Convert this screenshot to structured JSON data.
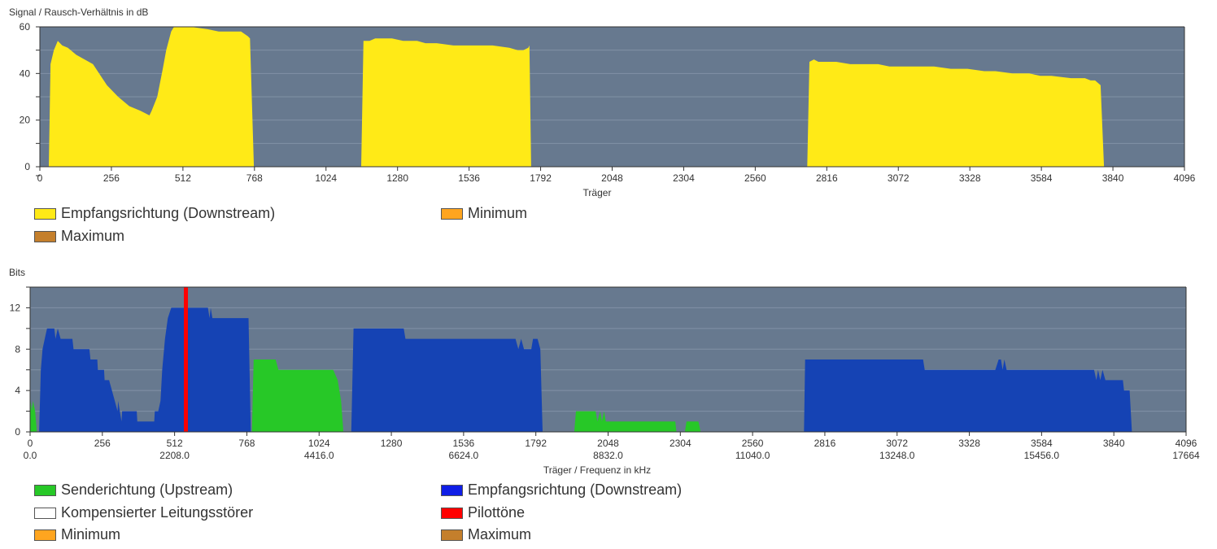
{
  "chart_data": [
    {
      "type": "area",
      "title": "Signal / Rausch-Verhältnis in dB",
      "xlabel": "Träger",
      "xlim": [
        0,
        4096
      ],
      "ylim": [
        0,
        60
      ],
      "yticks": [
        0,
        20,
        40,
        60
      ],
      "xticks": [
        0,
        256,
        512,
        768,
        1024,
        1280,
        1536,
        1792,
        2048,
        2304,
        2560,
        2816,
        3072,
        3328,
        3584,
        3840,
        4096
      ],
      "grid": true,
      "background_color": "#67798f",
      "legend_position": "bottom",
      "series": [
        {
          "name": "Empfangsrichtung (Downstream)",
          "color": "#ffea17",
          "segments": [
            [
              [
                32,
                0
              ],
              [
                38,
                44
              ],
              [
                50,
                50
              ],
              [
                64,
                54
              ],
              [
                80,
                52
              ],
              [
                100,
                51
              ],
              [
                130,
                48
              ],
              [
                160,
                46
              ],
              [
                190,
                44
              ],
              [
                240,
                35
              ],
              [
                280,
                30
              ],
              [
                320,
                26
              ],
              [
                360,
                24
              ],
              [
                392,
                22
              ],
              [
                400,
                24
              ],
              [
                420,
                30
              ],
              [
                440,
                42
              ],
              [
                452,
                50
              ],
              [
                470,
                58
              ],
              [
                480,
                60
              ],
              [
                540,
                60
              ],
              [
                600,
                59
              ],
              [
                640,
                58
              ],
              [
                720,
                58
              ],
              [
                744,
                56
              ],
              [
                752,
                55
              ],
              [
                766,
                0
              ]
            ],
            [
              [
                1150,
                0
              ],
              [
                1158,
                54
              ],
              [
                1180,
                54
              ],
              [
                1200,
                55
              ],
              [
                1260,
                55
              ],
              [
                1300,
                54
              ],
              [
                1350,
                54
              ],
              [
                1380,
                53
              ],
              [
                1420,
                53
              ],
              [
                1480,
                52
              ],
              [
                1560,
                52
              ],
              [
                1620,
                52
              ],
              [
                1680,
                51
              ],
              [
                1710,
                50
              ],
              [
                1730,
                50
              ],
              [
                1748,
                51
              ],
              [
                1752,
                52
              ],
              [
                1758,
                0
              ]
            ],
            [
              [
                2746,
                0
              ],
              [
                2754,
                45
              ],
              [
                2770,
                46
              ],
              [
                2786,
                45
              ],
              [
                2850,
                45
              ],
              [
                2900,
                44
              ],
              [
                2960,
                44
              ],
              [
                3000,
                44
              ],
              [
                3040,
                43
              ],
              [
                3100,
                43
              ],
              [
                3200,
                43
              ],
              [
                3260,
                42
              ],
              [
                3320,
                42
              ],
              [
                3380,
                41
              ],
              [
                3420,
                41
              ],
              [
                3480,
                40
              ],
              [
                3540,
                40
              ],
              [
                3580,
                39
              ],
              [
                3620,
                39
              ],
              [
                3690,
                38
              ],
              [
                3740,
                38
              ],
              [
                3760,
                37
              ],
              [
                3776,
                37
              ],
              [
                3796,
                35
              ],
              [
                3808,
                0
              ]
            ]
          ]
        },
        {
          "name": "Minimum",
          "color": "#ffa51f",
          "segments": []
        },
        {
          "name": "Maximum",
          "color": "#c47f2c",
          "segments": []
        }
      ]
    },
    {
      "type": "area",
      "title": "Bits",
      "xlabel": "Träger / Frequenz in kHz",
      "xlim": [
        0,
        4096
      ],
      "ylim": [
        0,
        14
      ],
      "yticks": [
        0,
        4,
        8,
        12
      ],
      "xticks": [
        0,
        256,
        512,
        768,
        1024,
        1280,
        1536,
        1792,
        2048,
        2304,
        2560,
        2816,
        3072,
        3328,
        3584,
        3840,
        4096
      ],
      "xticks_secondary": [
        {
          "x": 0,
          "label": "0.0"
        },
        {
          "x": 512,
          "label": "2208.0"
        },
        {
          "x": 1024,
          "label": "4416.0"
        },
        {
          "x": 1536,
          "label": "6624.0"
        },
        {
          "x": 2048,
          "label": "8832.0"
        },
        {
          "x": 2560,
          "label": "11040.0"
        },
        {
          "x": 3072,
          "label": "13248.0"
        },
        {
          "x": 3584,
          "label": "15456.0"
        },
        {
          "x": 4096,
          "label": "17664"
        }
      ],
      "grid": true,
      "background_color": "#67798f",
      "legend_position": "bottom",
      "series": [
        {
          "name": "Senderichtung (Upstream)",
          "color": "#27c827",
          "segments": [
            [
              [
                0,
                0
              ],
              [
                2,
                3
              ],
              [
                6,
                2
              ],
              [
                10,
                3
              ],
              [
                18,
                2
              ],
              [
                24,
                0
              ]
            ],
            [
              [
                786,
                0
              ],
              [
                792,
                7
              ],
              [
                870,
                7
              ],
              [
                880,
                6
              ],
              [
                1074,
                6
              ],
              [
                1090,
                5
              ],
              [
                1102,
                3
              ],
              [
                1110,
                0
              ]
            ],
            [
              [
                1928,
                0
              ],
              [
                1934,
                2
              ],
              [
                2004,
                2
              ],
              [
                2010,
                1
              ],
              [
                2020,
                2
              ],
              [
                2026,
                1
              ],
              [
                2034,
                2
              ],
              [
                2040,
                1
              ],
              [
                2286,
                1
              ],
              [
                2290,
                0
              ]
            ],
            [
              [
                2320,
                0
              ],
              [
                2326,
                1
              ],
              [
                2368,
                1
              ],
              [
                2376,
                0
              ]
            ]
          ]
        },
        {
          "name": "Empfangsrichtung (Downstream)",
          "color": "#1543b4",
          "segments": [
            [
              [
                32,
                0
              ],
              [
                38,
                6
              ],
              [
                44,
                8
              ],
              [
                52,
                9
              ],
              [
                60,
                10
              ],
              [
                86,
                10
              ],
              [
                90,
                9
              ],
              [
                98,
                10
              ],
              [
                108,
                9
              ],
              [
                150,
                9
              ],
              [
                154,
                8
              ],
              [
                210,
                8
              ],
              [
                214,
                7
              ],
              [
                238,
                7
              ],
              [
                240,
                6
              ],
              [
                262,
                6
              ],
              [
                264,
                5
              ],
              [
                280,
                5
              ],
              [
                290,
                4
              ],
              [
                300,
                3
              ],
              [
                310,
                2
              ],
              [
                312,
                3
              ],
              [
                324,
                1
              ],
              [
                326,
                2
              ],
              [
                378,
                2
              ],
              [
                380,
                1
              ],
              [
                440,
                1
              ],
              [
                442,
                2
              ],
              [
                454,
                2
              ],
              [
                462,
                3
              ],
              [
                468,
                6
              ],
              [
                478,
                9
              ],
              [
                488,
                11
              ],
              [
                500,
                12
              ],
              [
                630,
                12
              ],
              [
                636,
                11
              ],
              [
                640,
                12
              ],
              [
                646,
                11
              ],
              [
                774,
                11
              ],
              [
                782,
                0
              ]
            ],
            [
              [
                1138,
                0
              ],
              [
                1146,
                10
              ],
              [
                1324,
                10
              ],
              [
                1330,
                9
              ],
              [
                1720,
                9
              ],
              [
                1730,
                8
              ],
              [
                1740,
                9
              ],
              [
                1750,
                8
              ],
              [
                1776,
                8
              ],
              [
                1782,
                9
              ],
              [
                1798,
                9
              ],
              [
                1808,
                8
              ],
              [
                1816,
                0
              ]
            ],
            [
              [
                2742,
                0
              ],
              [
                2746,
                7
              ],
              [
                3164,
                7
              ],
              [
                3170,
                6
              ],
              [
                3420,
                6
              ],
              [
                3432,
                7
              ],
              [
                3440,
                7
              ],
              [
                3446,
                6
              ],
              [
                3452,
                7
              ],
              [
                3460,
                6
              ],
              [
                3770,
                6
              ],
              [
                3778,
                5
              ],
              [
                3784,
                6
              ],
              [
                3792,
                5
              ],
              [
                3800,
                6
              ],
              [
                3810,
                5
              ],
              [
                3872,
                5
              ],
              [
                3876,
                4
              ],
              [
                3896,
                4
              ],
              [
                3904,
                0
              ]
            ]
          ]
        },
        {
          "name": "Kompensierter Leitungsstörer",
          "color": "#ffffff",
          "segments": []
        },
        {
          "name": "Pilottöne",
          "color": "#ff0000",
          "markers": [
            552
          ]
        },
        {
          "name": "Minimum",
          "color": "#ffa51f",
          "segments": []
        },
        {
          "name": "Maximum",
          "color": "#c47f2c",
          "segments": []
        }
      ]
    }
  ]
}
